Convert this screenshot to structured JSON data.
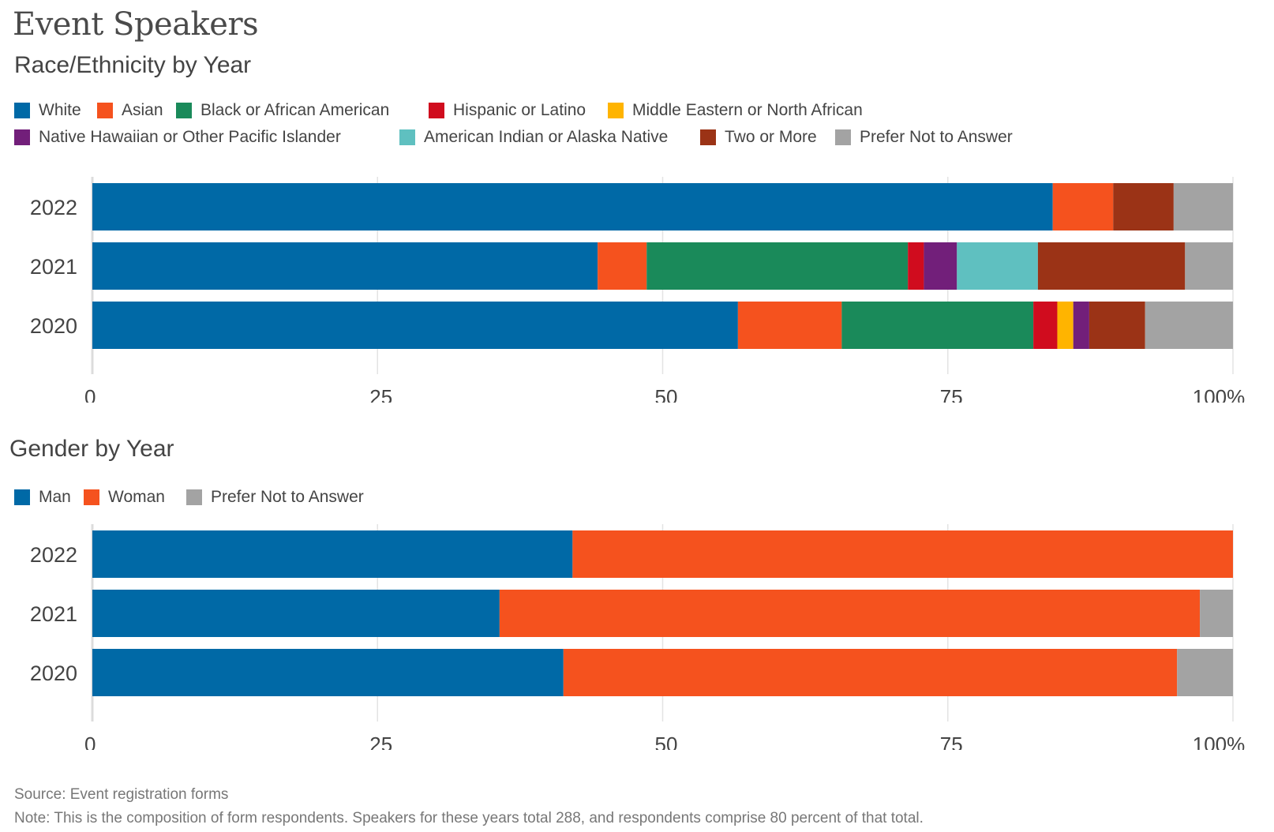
{
  "title": "Event Speakers",
  "chart_data": [
    {
      "type": "bar",
      "orientation": "horizontal",
      "stacked": true,
      "title": "Race/Ethnicity by Year",
      "xlabel": "",
      "ylabel": "",
      "xlim": [
        0,
        100
      ],
      "x_ticks": [
        "0",
        "25",
        "50",
        "75",
        "100%"
      ],
      "x_tick_values": [
        0,
        25,
        50,
        75,
        100
      ],
      "grid": true,
      "legend_position": "top-left",
      "categories": [
        "2022",
        "2021",
        "2020"
      ],
      "series": [
        {
          "name": "White",
          "color": "#0069A6",
          "values": [
            84.2,
            44.3,
            56.6
          ]
        },
        {
          "name": "Asian",
          "color": "#F5521E",
          "values": [
            5.3,
            4.3,
            9.1
          ]
        },
        {
          "name": "Black or African American",
          "color": "#1A8A5A",
          "values": [
            0,
            22.9,
            16.8
          ]
        },
        {
          "name": "Hispanic or Latino",
          "color": "#D00C1E",
          "values": [
            0,
            1.4,
            2.1
          ]
        },
        {
          "name": "Middle Eastern or North African",
          "color": "#FFB400",
          "values": [
            0,
            0,
            1.4
          ]
        },
        {
          "name": "Native Hawaiian or Other Pacific Islander",
          "color": "#721F7A",
          "values": [
            0,
            2.9,
            1.4
          ]
        },
        {
          "name": "American Indian or Alaska Native",
          "color": "#5FC0C0",
          "values": [
            0,
            7.1,
            0
          ]
        },
        {
          "name": "Two or More",
          "color": "#9B3316",
          "values": [
            5.3,
            12.9,
            4.9
          ]
        },
        {
          "name": "Prefer Not to Answer",
          "color": "#A3A3A3",
          "values": [
            5.2,
            4.2,
            7.7
          ]
        }
      ]
    },
    {
      "type": "bar",
      "orientation": "horizontal",
      "stacked": true,
      "title": "Gender by Year",
      "xlabel": "",
      "ylabel": "",
      "xlim": [
        0,
        100
      ],
      "x_ticks": [
        "0",
        "25",
        "50",
        "75",
        "100%"
      ],
      "x_tick_values": [
        0,
        25,
        50,
        75,
        100
      ],
      "grid": true,
      "legend_position": "top-left",
      "categories": [
        "2022",
        "2021",
        "2020"
      ],
      "series": [
        {
          "name": "Man",
          "color": "#0069A6",
          "values": [
            42.1,
            35.7,
            41.3
          ]
        },
        {
          "name": "Woman",
          "color": "#F5521E",
          "values": [
            57.9,
            61.4,
            53.8
          ]
        },
        {
          "name": "Prefer Not to Answer",
          "color": "#A3A3A3",
          "values": [
            0,
            2.9,
            4.9
          ]
        }
      ]
    }
  ],
  "footer": {
    "source": "Source: Event registration forms",
    "note": "Note: This is the composition of form respondents. Speakers for these years total 288, and respondents comprise 80 percent of that total."
  }
}
